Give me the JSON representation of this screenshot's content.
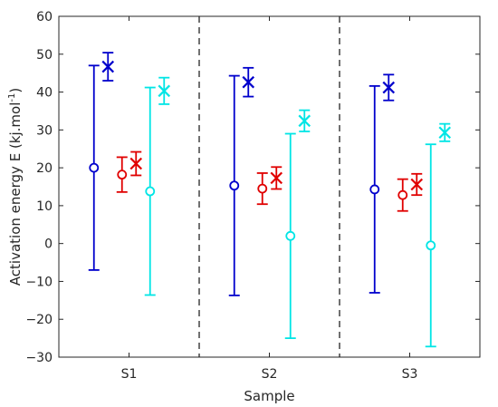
{
  "chart_data": {
    "type": "errorbar",
    "title": "",
    "xlabel": "Sample",
    "ylabel": "Activation energy E (kj.mol",
    "ylabel_sup": "-1",
    "ylabel_end": ")",
    "ylim": [
      -30,
      60
    ],
    "yticks": [
      -30,
      -20,
      -10,
      0,
      10,
      20,
      30,
      40,
      50,
      60
    ],
    "categories": [
      "S1",
      "S2",
      "S3"
    ],
    "separators": [
      1.5,
      2.5
    ],
    "grid": false,
    "legend": "none",
    "series": [
      {
        "color": "#0000cc",
        "marker": "circle",
        "offset": -0.25,
        "values": [
          20,
          15.3,
          14.3
        ],
        "lower": [
          -7,
          -13.7,
          -13
        ],
        "upper": [
          47,
          44.3,
          41.6
        ]
      },
      {
        "color": "#0000cc",
        "marker": "x",
        "offset": -0.15,
        "values": [
          46.7,
          42.6,
          41.2
        ],
        "lower": [
          43,
          38.8,
          37.8
        ],
        "upper": [
          50.4,
          46.4,
          44.6
        ]
      },
      {
        "color": "#e00000",
        "marker": "circle",
        "offset": -0.05,
        "values": [
          18.2,
          14.5,
          12.8
        ],
        "lower": [
          13.6,
          10.4,
          8.6
        ],
        "upper": [
          22.8,
          18.6,
          17
        ]
      },
      {
        "color": "#e00000",
        "marker": "x",
        "offset": 0.05,
        "values": [
          21.1,
          17.3,
          15.6
        ],
        "lower": [
          18,
          14.4,
          12.8
        ],
        "upper": [
          24.2,
          20.2,
          18.4
        ]
      },
      {
        "color": "#00e5e5",
        "marker": "circle",
        "offset": 0.15,
        "values": [
          13.8,
          2,
          -0.5
        ],
        "lower": [
          -13.6,
          -25,
          -27.2
        ],
        "upper": [
          41.2,
          29,
          26.2
        ]
      },
      {
        "color": "#00e5e5",
        "marker": "x",
        "offset": 0.25,
        "values": [
          40.3,
          32.4,
          29.3
        ],
        "lower": [
          36.8,
          29.6,
          27
        ],
        "upper": [
          43.8,
          35.2,
          31.6
        ]
      }
    ]
  }
}
